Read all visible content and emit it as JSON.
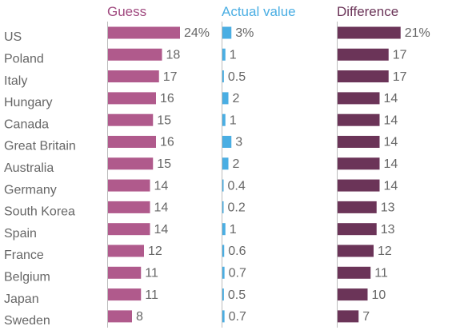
{
  "chart_data": {
    "type": "bar",
    "categories": [
      "US",
      "Poland",
      "Italy",
      "Hungary",
      "Canada",
      "Great Britain",
      "Australia",
      "Germany",
      "South Korea",
      "Spain",
      "France",
      "Belgium",
      "Japan",
      "Sweden"
    ],
    "panels": [
      {
        "title": "Guess",
        "color": "#b05a8c",
        "title_color": "#a0497f",
        "values": [
          24,
          18,
          17,
          16,
          15,
          16,
          15,
          14,
          14,
          14,
          12,
          11,
          11,
          8
        ],
        "labels": [
          "24%",
          "18",
          "17",
          "16",
          "15",
          "16",
          "15",
          "14",
          "14",
          "14",
          "12",
          "11",
          "11",
          "8"
        ]
      },
      {
        "title": "Actual value",
        "color": "#4aaee3",
        "title_color": "#4aaee3",
        "values": [
          3,
          1,
          0.5,
          2,
          1,
          3,
          2,
          0.4,
          0.2,
          1,
          0.6,
          0.7,
          0.5,
          0.7
        ],
        "labels": [
          "3%",
          "1",
          "0.5",
          "2",
          "1",
          "3",
          "2",
          "0.4",
          "0.2",
          "1",
          "0.6",
          "0.7",
          "0.5",
          "0.7"
        ]
      },
      {
        "title": "Difference",
        "color": "#6b3458",
        "title_color": "#6b3458",
        "values": [
          21,
          17,
          17,
          14,
          14,
          14,
          14,
          14,
          13,
          13,
          12,
          11,
          10,
          7
        ],
        "labels": [
          "21%",
          "17",
          "17",
          "14",
          "14",
          "14",
          "14",
          "14",
          "13",
          "13",
          "12",
          "11",
          "10",
          "7"
        ]
      }
    ],
    "colors": {
      "label_text": "#666666",
      "axis_line": "#bbbbbb"
    }
  }
}
